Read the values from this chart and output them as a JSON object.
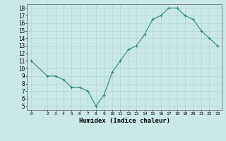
{
  "x": [
    0,
    2,
    3,
    4,
    5,
    6,
    7,
    8,
    9,
    10,
    11,
    12,
    13,
    14,
    15,
    16,
    17,
    18,
    19,
    20,
    21,
    22,
    23
  ],
  "y": [
    11,
    9,
    9,
    8.5,
    7.5,
    7.5,
    7,
    5,
    6.5,
    9.5,
    11,
    12.5,
    13,
    14.5,
    16.5,
    17,
    18,
    18,
    17,
    16.5,
    15,
    14,
    13
  ],
  "xlim": [
    -0.5,
    23.5
  ],
  "ylim": [
    4.5,
    18.5
  ],
  "xticks": [
    0,
    2,
    3,
    4,
    5,
    6,
    7,
    8,
    9,
    10,
    11,
    12,
    13,
    14,
    15,
    16,
    17,
    18,
    19,
    20,
    21,
    22,
    23
  ],
  "yticks": [
    5,
    6,
    7,
    8,
    9,
    10,
    11,
    12,
    13,
    14,
    15,
    16,
    17,
    18
  ],
  "xlabel": "Humidex (Indice chaleur)",
  "line_color": "#2a8a6e",
  "marker": "+",
  "bg_color": "#cbe8e8",
  "grid_color": "#b0d4d4"
}
